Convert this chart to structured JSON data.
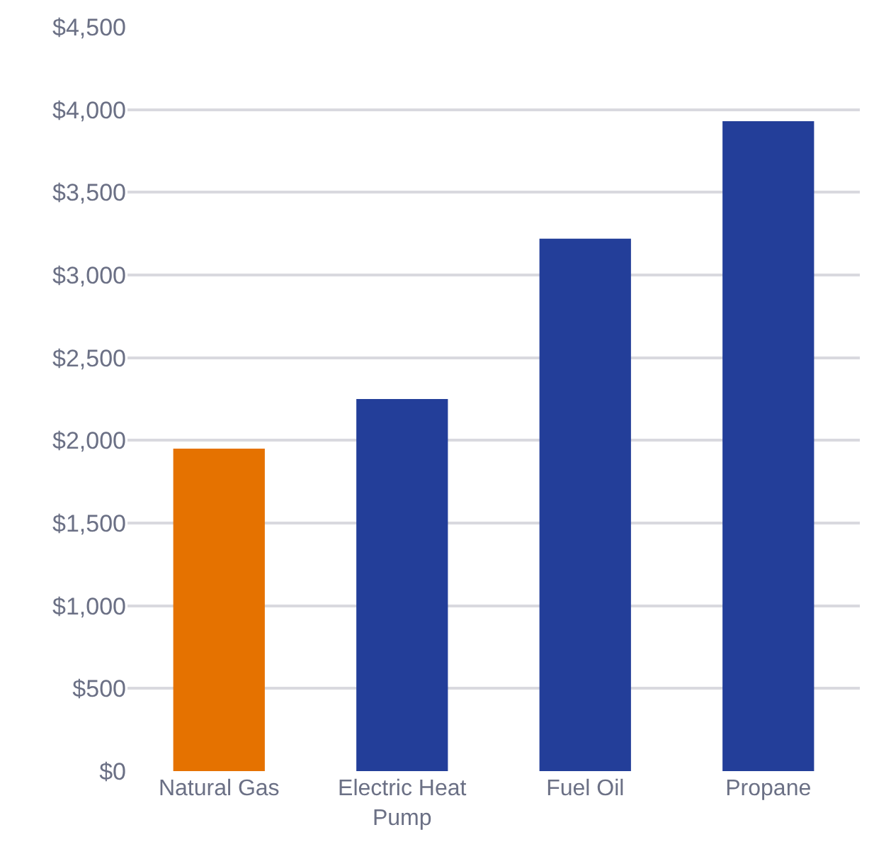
{
  "chart_data": {
    "type": "bar",
    "categories": [
      "Natural Gas",
      "Electric Heat Pump",
      "Fuel Oil",
      "Propane"
    ],
    "values": [
      1950,
      2250,
      3220,
      3930
    ],
    "colors": [
      "#e57200",
      "#233e99",
      "#233e99",
      "#233e99"
    ],
    "ylim": [
      0,
      4500
    ],
    "yticks": [
      {
        "value": 0,
        "label": "$0"
      },
      {
        "value": 500,
        "label": "$500"
      },
      {
        "value": 1000,
        "label": "$1,000"
      },
      {
        "value": 1500,
        "label": "$1,500"
      },
      {
        "value": 2000,
        "label": "$2,000"
      },
      {
        "value": 2500,
        "label": "$2,500"
      },
      {
        "value": 3000,
        "label": "$3,000"
      },
      {
        "value": 3500,
        "label": "$3,500"
      },
      {
        "value": 4000,
        "label": "$4,000"
      },
      {
        "value": 4500,
        "label": "$4,500"
      }
    ],
    "grid": "y"
  }
}
